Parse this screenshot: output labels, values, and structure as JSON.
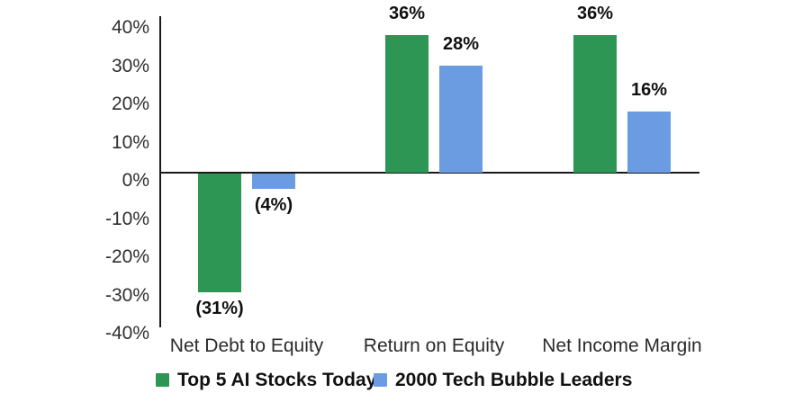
{
  "chart_data": {
    "type": "bar",
    "title": "",
    "xlabel": "",
    "ylabel": "",
    "grid": false,
    "legend_position": "bottom",
    "categories": [
      "Net Debt to Equity",
      "Return on Equity",
      "Net Income Margin"
    ],
    "series": [
      {
        "name": "Top 5 AI Stocks Today",
        "color": "#2E9655",
        "values": [
          -31,
          36,
          36
        ],
        "labels": [
          "(31%)",
          "36%",
          "36%"
        ]
      },
      {
        "name": "2000 Tech Bubble Leaders",
        "color": "#6B9CE2",
        "values": [
          -4,
          28,
          16
        ],
        "labels": [
          "(4%)",
          "28%",
          "16%"
        ]
      }
    ],
    "y_axis": {
      "min": -40,
      "max": 40,
      "step": 10,
      "tick_labels": [
        "40%",
        "30%",
        "20%",
        "10%",
        "0%",
        "-10%",
        "-20%",
        "-30%",
        "-40%"
      ]
    }
  }
}
